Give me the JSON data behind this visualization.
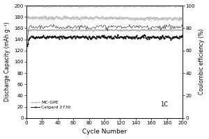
{
  "title": "",
  "xlabel": "Cycle Number",
  "ylabel_left": "Discharge Capacity (mAh g⁻¹)",
  "ylabel_right": "Coulombic efficiency (%)",
  "xlim": [
    0,
    200
  ],
  "ylim_left": [
    0,
    200
  ],
  "ylim_right": [
    0,
    100
  ],
  "xticks": [
    0,
    20,
    40,
    60,
    80,
    100,
    120,
    140,
    160,
    180,
    200
  ],
  "yticks_left": [
    0,
    20,
    40,
    60,
    80,
    100,
    120,
    140,
    160,
    180,
    200
  ],
  "yticks_right": [
    0,
    20,
    40,
    60,
    80,
    100
  ],
  "annotation": "1C",
  "legend_entries": [
    "MC-GPE",
    "Celgard 2730"
  ],
  "mc_gpe_discharge_base": 179,
  "mc_gpe_discharge_noise": 1.2,
  "celgard_discharge_base": 144,
  "celgard_discharge_noise": 1.5,
  "mc_gpe_ce_base": 99,
  "mc_gpe_ce_noise": 0.4,
  "celgard_ce_base": 81,
  "celgard_ce_noise": 1.0,
  "mc_gpe_charge_base": 157,
  "celgard_charge_base": 156,
  "colors": {
    "mc_gpe": "#999999",
    "celgard": "#111111"
  }
}
